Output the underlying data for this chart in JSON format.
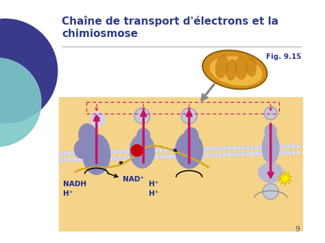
{
  "title_line1": "Chaîne de transport d'électrons et la",
  "title_line2": "chimiosmose",
  "title_color": "#2E3A87",
  "title_fontsize": 11,
  "bg_color": "#FFFFFF",
  "fig_label": "Fig. 9.15",
  "fig_label_color": "#2E3A87",
  "slide_number": "9",
  "left_circle_color": "#3A3A8C",
  "left_circle2_color": "#7EC8C8",
  "main_diagram_bg": "#F5D48A",
  "protein_color": "#8888BB",
  "arrow_color": "#CC1166",
  "label_nadh": "NADH",
  "label_nad": "NAD⁺",
  "label_hplus": "H⁺",
  "mitochondria_color": "#E8A030",
  "red_dot_color": "#CC0000",
  "yellow_star_color": "#FFEE00",
  "yellow_line_color": "#D4AA20",
  "carrier_color": "#C8C8D4",
  "carrier_edge": "#9090AA",
  "membrane_dot_color": "#E0E0EC",
  "membrane_base": "#C0C0D0",
  "dashed_color": "#CC1166",
  "gray_arrow_color": "#888888"
}
